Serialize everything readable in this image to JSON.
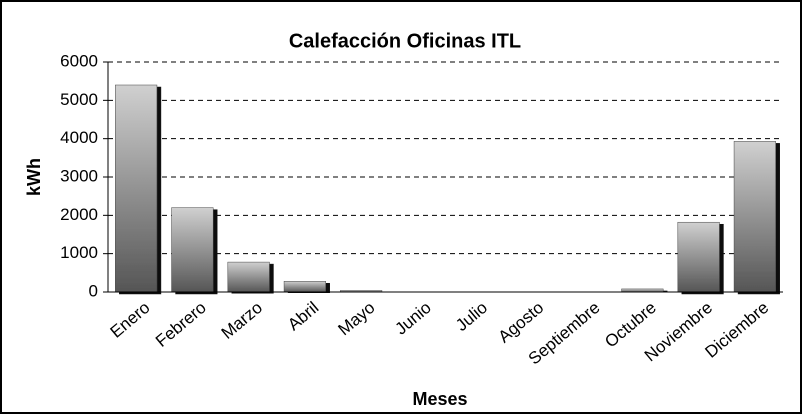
{
  "chart_data": {
    "type": "bar",
    "title": "Calefacción Oficinas ITL",
    "x_label": "Meses",
    "y_label": "kWh",
    "categories": [
      "Enero",
      "Febrero",
      "Marzo",
      "Abril",
      "Mayo",
      "Junio",
      "Julio",
      "Agosto",
      "Septiembre",
      "Octubre",
      "Noviembre",
      "Diciembre"
    ],
    "values": [
      5400,
      2200,
      780,
      280,
      40,
      0,
      0,
      0,
      0,
      80,
      1820,
      3930
    ],
    "color": "#9a9a9a",
    "ylim": [
      0,
      6000
    ],
    "yticks": [
      0,
      1000,
      2000,
      3000,
      4000,
      5000,
      6000
    ],
    "grid": true
  }
}
